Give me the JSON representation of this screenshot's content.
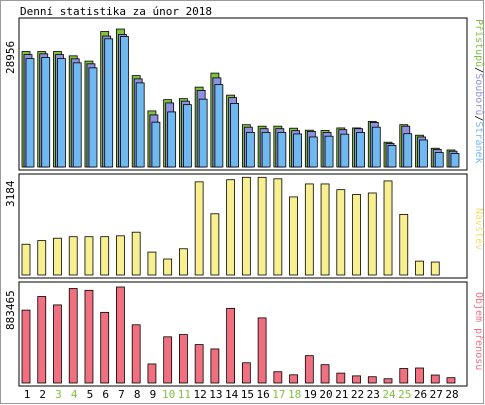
{
  "title": "Denní statistika za únor 2018",
  "colors": {
    "background": "#ffffff",
    "frame": "#000000",
    "hits": "#80c040",
    "files": "#9090e0",
    "pages": "#70b8f0",
    "visits": "#f8f090",
    "kbytes": "#f07080",
    "weekend_label": "#80c040",
    "weekday_label": "#000000"
  },
  "chart_data": [
    {
      "type": "bar",
      "name": "hits-files-pages",
      "categories": [
        "1",
        "2",
        "3",
        "4",
        "5",
        "6",
        "7",
        "8",
        "9",
        "10",
        "11",
        "12",
        "13",
        "14",
        "15",
        "16",
        "17",
        "18",
        "19",
        "20",
        "21",
        "22",
        "23",
        "24",
        "25",
        "26",
        "27",
        "28"
      ],
      "ymax": 28956,
      "ymax_label": "28956",
      "side_label": "Přístupů/Souborů/Stránek",
      "side_label_parts": [
        "Přístupů",
        "/",
        "Souborů",
        "/",
        "Stránek"
      ],
      "series": [
        {
          "name": "Přístupů",
          "values": [
            23050,
            23050,
            23050,
            22200,
            21150,
            27050,
            27550,
            18250,
            11200,
            13450,
            13650,
            15950,
            18750,
            14350,
            8450,
            8150,
            8150,
            7750,
            7350,
            7300,
            7800,
            7800,
            9100,
            4950,
            8450,
            6350,
            3750,
            3400
          ]
        },
        {
          "name": "Souborů",
          "values": [
            22450,
            22600,
            22450,
            21600,
            20600,
            26150,
            26450,
            17600,
            10400,
            12800,
            13150,
            15300,
            17800,
            13850,
            7950,
            7650,
            7650,
            7250,
            7100,
            6900,
            7450,
            7650,
            8900,
            4700,
            8150,
            6000,
            3500,
            3150
          ]
        },
        {
          "name": "Stránek",
          "values": [
            21650,
            21850,
            21650,
            20800,
            19800,
            25600,
            26050,
            16800,
            8950,
            11000,
            12450,
            13550,
            16450,
            12700,
            6900,
            6900,
            6900,
            6600,
            6000,
            6150,
            6550,
            6900,
            7950,
            4300,
            6650,
            5400,
            2900,
            2700
          ]
        }
      ]
    },
    {
      "type": "bar",
      "name": "visits",
      "categories": [
        "1",
        "2",
        "3",
        "4",
        "5",
        "6",
        "7",
        "8",
        "9",
        "10",
        "11",
        "12",
        "13",
        "14",
        "15",
        "16",
        "17",
        "18",
        "19",
        "20",
        "21",
        "22",
        "23",
        "24",
        "25",
        "26",
        "27",
        "28"
      ],
      "ymax": 3184,
      "ymax_label": "3184",
      "side_label": "Návštěv",
      "series": [
        {
          "name": "Návštěv",
          "values": [
            1020,
            1140,
            1220,
            1270,
            1270,
            1270,
            1300,
            1420,
            760,
            530,
            870,
            3090,
            2030,
            3160,
            3240,
            3240,
            3190,
            2590,
            3020,
            3020,
            2830,
            2670,
            2720,
            3120,
            2010,
            460,
            430,
            0
          ]
        }
      ]
    },
    {
      "type": "bar",
      "name": "kbytes",
      "categories": [
        "1",
        "2",
        "3",
        "4",
        "5",
        "6",
        "7",
        "8",
        "9",
        "10",
        "11",
        "12",
        "13",
        "14",
        "15",
        "16",
        "17",
        "18",
        "19",
        "20",
        "21",
        "22",
        "23",
        "24",
        "25",
        "26",
        "27",
        "28"
      ],
      "ymax": 883465,
      "ymax_label": "883465",
      "side_label": "Objem přenosu",
      "series": [
        {
          "name": "Objem přenosu",
          "values": [
            685000,
            813000,
            734000,
            888000,
            871000,
            664000,
            904000,
            547000,
            179000,
            434000,
            455000,
            361000,
            320000,
            701000,
            190000,
            612000,
            106000,
            77000,
            257000,
            172000,
            93000,
            67000,
            59000,
            40000,
            136000,
            141000,
            75000,
            50000
          ]
        }
      ]
    }
  ],
  "day_labels": [
    "1",
    "2",
    "3",
    "4",
    "5",
    "6",
    "7",
    "8",
    "9",
    "10",
    "11",
    "12",
    "13",
    "14",
    "15",
    "16",
    "17",
    "18",
    "19",
    "20",
    "21",
    "22",
    "23",
    "24",
    "25",
    "26",
    "27",
    "28"
  ],
  "weekend_days": [
    "3",
    "4",
    "10",
    "11",
    "17",
    "18",
    "24",
    "25"
  ]
}
